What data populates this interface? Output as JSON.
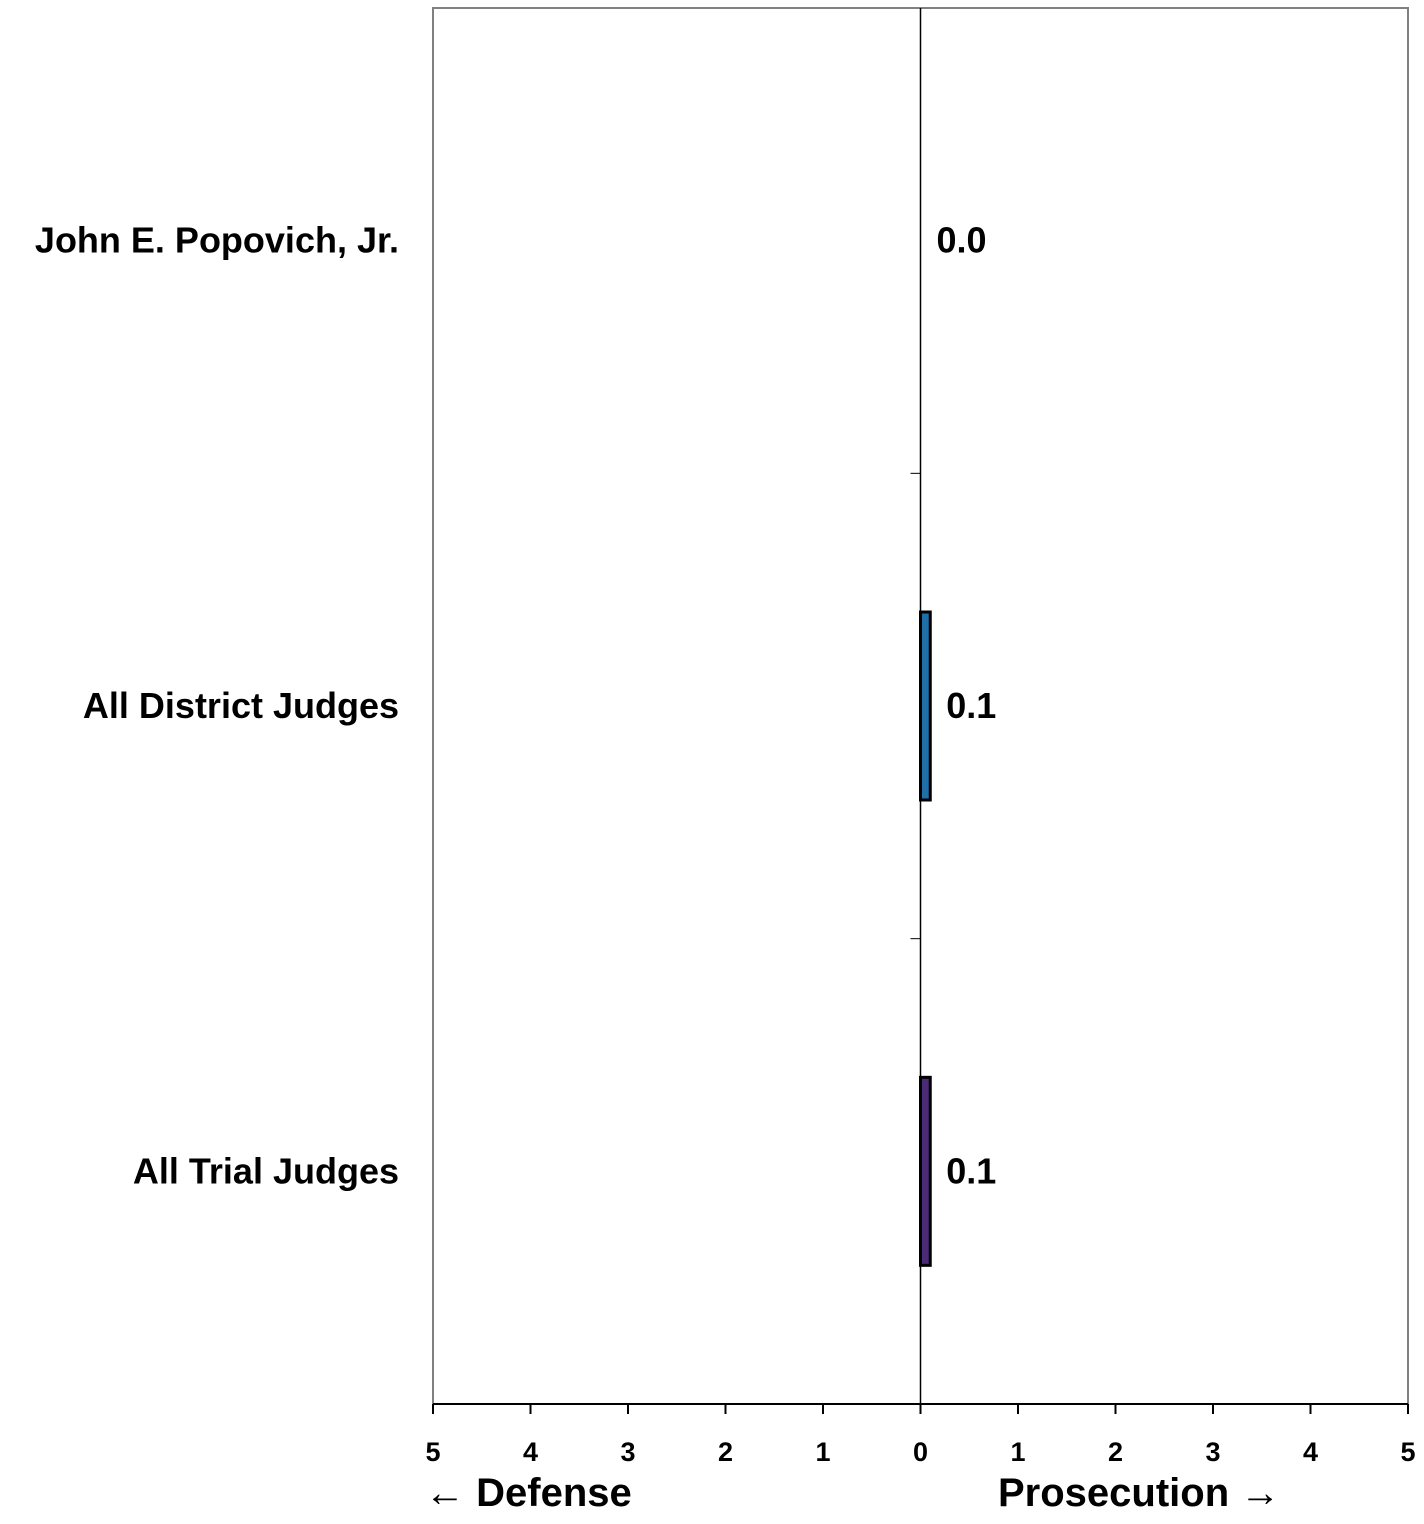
{
  "chart_data": {
    "type": "bar",
    "orientation": "horizontal",
    "categories": [
      "John E. Popovich, Jr.",
      "All District Judges",
      "All Trial Judges"
    ],
    "values": [
      0.0,
      0.1,
      0.1
    ],
    "value_labels": [
      "0.0",
      "0.1",
      "0.1"
    ],
    "bar_colors": [
      "#1f5f8b",
      "#1f6fa8",
      "#4b2a78"
    ],
    "xlim": [
      -5,
      5
    ],
    "x_tick_values": [
      -5,
      -4,
      -3,
      -2,
      -1,
      0,
      1,
      2,
      3,
      4,
      5
    ],
    "x_tick_labels": [
      "5",
      "4",
      "3",
      "2",
      "1",
      "0",
      "1",
      "2",
      "3",
      "4",
      "5"
    ],
    "left_direction_label": "← Defense",
    "right_direction_label": "Prosecution →",
    "grid": false,
    "legend": "none"
  }
}
